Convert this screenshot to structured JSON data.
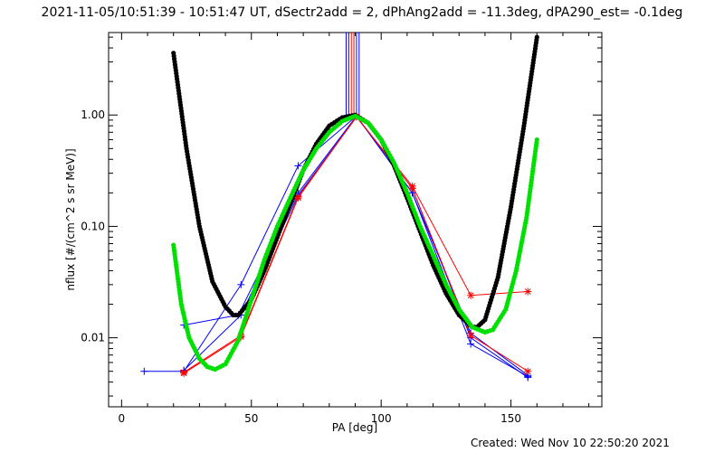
{
  "chart_data": {
    "type": "scatter",
    "title": "2021-11-05/10:51:39 - 10:51:47 UT, dSectr2add = 2, dPhAng2add = -11.3deg, dPA290_est= -0.1deg",
    "xlabel": "PA [deg]",
    "ylabel": "nflux [#/(cm^2 s sr MeV)]",
    "xlim": [
      -5,
      185
    ],
    "ylim": [
      0.0024,
      5.5
    ],
    "yscale": "log",
    "x_ticks": [
      0,
      50,
      100,
      150
    ],
    "x_tick_labels": [
      "0",
      "50",
      "100",
      "150"
    ],
    "y_ticks": [
      0.01,
      0.1,
      1.0
    ],
    "y_tick_labels": [
      "0.01",
      "0.10",
      "1.00"
    ],
    "grid": false,
    "vertical_lines": {
      "color": "#0000ff",
      "red_color": "#ff0000",
      "blue_x": [
        86.5,
        87.5,
        90.5,
        91.5
      ],
      "red_x": [
        88.5,
        89.5
      ]
    },
    "series": [
      {
        "color": "#0000ff",
        "marker": "+",
        "x": [
          8.7,
          24,
          46,
          68,
          90.5,
          112,
          134.5,
          156.5
        ],
        "y": [
          0.005,
          0.005,
          0.03,
          0.35,
          0.98,
          0.2,
          0.0088,
          0.0045
        ]
      },
      {
        "color": "#0000ff",
        "marker": "+",
        "x": [
          24,
          45,
          68,
          90.5,
          112,
          134.5,
          156.5
        ],
        "y": [
          0.013,
          0.016,
          0.2,
          0.98,
          0.2,
          0.011,
          0.0046
        ]
      },
      {
        "color": "#0000ff",
        "marker": "+",
        "x": [
          24,
          46,
          68,
          90.5,
          112,
          134.5,
          156.5
        ],
        "y": [
          0.0051,
          0.016,
          0.19,
          0.96,
          0.22,
          0.01,
          0.0044
        ]
      },
      {
        "color": "#ff0000",
        "marker": "*",
        "x": [
          24,
          46,
          68,
          90.5,
          112,
          134.5,
          156.5
        ],
        "y": [
          0.0049,
          0.0105,
          0.185,
          0.96,
          0.23,
          0.024,
          0.026
        ]
      },
      {
        "color": "#ff0000",
        "marker": "*",
        "x": [
          24,
          46,
          68,
          90.5,
          112,
          134.5,
          156.5
        ],
        "y": [
          0.0048,
          0.0102,
          0.18,
          0.97,
          0.22,
          0.0105,
          0.005
        ]
      },
      {
        "color": "#000000",
        "marker": "dot",
        "x": [
          20,
          25,
          30,
          35,
          40,
          43,
          45,
          50,
          55,
          60,
          65,
          70,
          75,
          80,
          85,
          90,
          95,
          100,
          105,
          110,
          115,
          120,
          125,
          130,
          135,
          137,
          140,
          145,
          150,
          155,
          160
        ],
        "y": [
          3.6,
          0.5,
          0.1,
          0.032,
          0.019,
          0.016,
          0.016,
          0.022,
          0.04,
          0.08,
          0.16,
          0.32,
          0.55,
          0.8,
          0.95,
          1.0,
          0.85,
          0.6,
          0.35,
          0.18,
          0.09,
          0.045,
          0.025,
          0.016,
          0.0125,
          0.0125,
          0.0145,
          0.035,
          0.15,
          0.8,
          5.0
        ]
      },
      {
        "color": "#00e000",
        "marker": "dot",
        "x": [
          20,
          23,
          26,
          30,
          33,
          36,
          40,
          45,
          50,
          55,
          60,
          65,
          70,
          75,
          80,
          85,
          90,
          95,
          100,
          105,
          110,
          115,
          120,
          125,
          130,
          135,
          140,
          143,
          148,
          152,
          156,
          160
        ],
        "y": [
          0.068,
          0.02,
          0.01,
          0.0065,
          0.0055,
          0.0052,
          0.0058,
          0.0095,
          0.022,
          0.05,
          0.1,
          0.18,
          0.32,
          0.5,
          0.7,
          0.88,
          0.98,
          0.85,
          0.6,
          0.37,
          0.2,
          0.1,
          0.055,
          0.03,
          0.018,
          0.0125,
          0.0112,
          0.0118,
          0.018,
          0.04,
          0.12,
          0.6
        ]
      }
    ]
  },
  "footer": {
    "created": "Created: Wed Nov 10 22:50:20 2021"
  }
}
